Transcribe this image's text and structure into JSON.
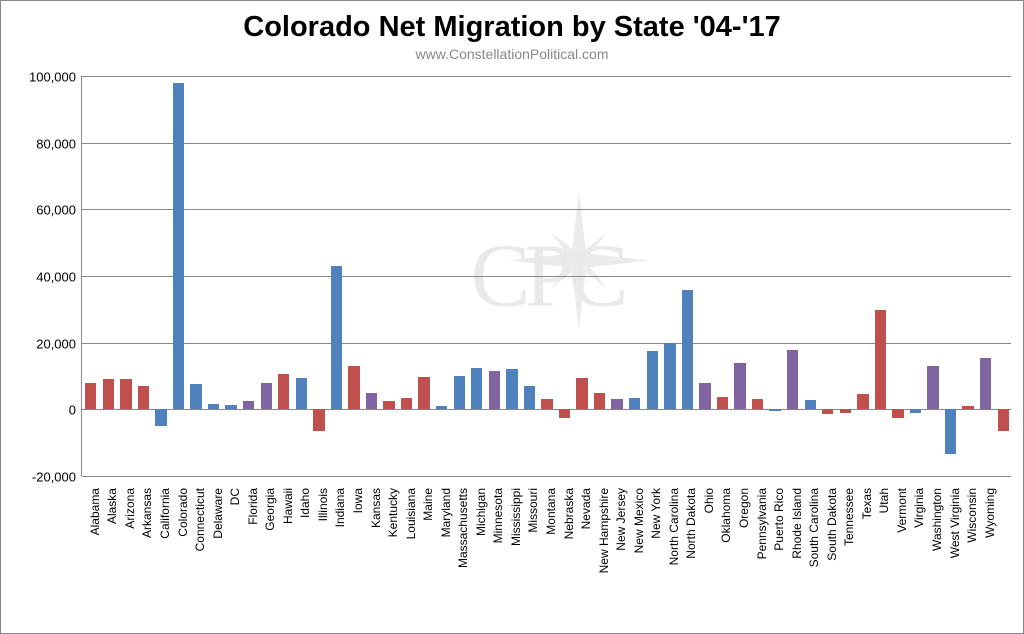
{
  "chart": {
    "type": "bar",
    "title": "Colorado Net Migration by State '04-'17",
    "title_fontsize": 29,
    "title_fontweight": "bold",
    "subtitle": "www.ConstellationPolitical.com",
    "subtitle_fontsize": 14,
    "subtitle_color": "#888888",
    "background_color": "#ffffff",
    "grid_color": "#888888",
    "ylim": [
      -20000,
      100000
    ],
    "ytick_step": 20000,
    "yticks": [
      -20000,
      0,
      20000,
      40000,
      60000,
      80000,
      100000
    ],
    "ytick_labels": [
      "-20,000",
      "0",
      "20,000",
      "40,000",
      "60,000",
      "80,000",
      "100,000"
    ],
    "ytick_fontsize": 13,
    "xlabel_fontsize": 12,
    "xlabel_rotation": -90,
    "bar_width": 0.65,
    "colors": {
      "red": "#c0504d",
      "blue": "#4f81bd",
      "purple": "#8064a2"
    },
    "watermark": {
      "text": "CPC",
      "opacity": 0.12,
      "fontsize": 90,
      "color": "#555555"
    },
    "data": [
      {
        "state": "Alabama",
        "value": 8000,
        "color": "red"
      },
      {
        "state": "Alaska",
        "value": 9000,
        "color": "red"
      },
      {
        "state": "Arizona",
        "value": 9000,
        "color": "red"
      },
      {
        "state": "Arkansas",
        "value": 7000,
        "color": "red"
      },
      {
        "state": "California",
        "value": -5000,
        "color": "blue"
      },
      {
        "state": "Colorado",
        "value": 98000,
        "color": "blue"
      },
      {
        "state": "Connecticut",
        "value": 7500,
        "color": "blue"
      },
      {
        "state": "Delaware",
        "value": 1500,
        "color": "blue"
      },
      {
        "state": "DC",
        "value": 1200,
        "color": "blue"
      },
      {
        "state": "Florida",
        "value": 2500,
        "color": "purple"
      },
      {
        "state": "Georgia",
        "value": 8000,
        "color": "purple"
      },
      {
        "state": "Hawaii",
        "value": 10500,
        "color": "red"
      },
      {
        "state": "Idaho",
        "value": 9500,
        "color": "blue"
      },
      {
        "state": "Illinois",
        "value": -6500,
        "color": "red"
      },
      {
        "state": "Indiana",
        "value": 43000,
        "color": "blue"
      },
      {
        "state": "Iowa",
        "value": 13000,
        "color": "red"
      },
      {
        "state": "Kansas",
        "value": 5000,
        "color": "purple"
      },
      {
        "state": "Kentucky",
        "value": 2500,
        "color": "red"
      },
      {
        "state": "Louisiana",
        "value": 3500,
        "color": "red"
      },
      {
        "state": "Maine",
        "value": 9800,
        "color": "red"
      },
      {
        "state": "Maryland",
        "value": 1000,
        "color": "blue"
      },
      {
        "state": "Massachusetts",
        "value": 10000,
        "color": "blue"
      },
      {
        "state": "Michigan",
        "value": 12500,
        "color": "blue"
      },
      {
        "state": "Minnesota",
        "value": 11500,
        "color": "purple"
      },
      {
        "state": "Mississippi",
        "value": 12200,
        "color": "blue"
      },
      {
        "state": "Missouri",
        "value": 7000,
        "color": "blue"
      },
      {
        "state": "Montana",
        "value": 3000,
        "color": "red"
      },
      {
        "state": "Nebraska",
        "value": -2500,
        "color": "red"
      },
      {
        "state": "Nevada",
        "value": 9500,
        "color": "red"
      },
      {
        "state": "New Hampshire",
        "value": 5000,
        "color": "red"
      },
      {
        "state": "New Jersey",
        "value": 3000,
        "color": "purple"
      },
      {
        "state": "New Mexico",
        "value": 3500,
        "color": "blue"
      },
      {
        "state": "New York",
        "value": 17500,
        "color": "blue"
      },
      {
        "state": "North Carolina",
        "value": 19800,
        "color": "blue"
      },
      {
        "state": "North Dakota",
        "value": 35800,
        "color": "blue"
      },
      {
        "state": "Ohio",
        "value": 8000,
        "color": "purple"
      },
      {
        "state": "Oklahoma",
        "value": 3800,
        "color": "red"
      },
      {
        "state": "Oregon",
        "value": 14000,
        "color": "purple"
      },
      {
        "state": "Pennsylvania",
        "value": 3000,
        "color": "red"
      },
      {
        "state": "Puerto Rico",
        "value": -500,
        "color": "blue"
      },
      {
        "state": "Rhode Island",
        "value": 17800,
        "color": "purple"
      },
      {
        "state": "South Carolina",
        "value": 2800,
        "color": "blue"
      },
      {
        "state": "South Dakota",
        "value": -1500,
        "color": "red"
      },
      {
        "state": "Tennessee",
        "value": -1200,
        "color": "red"
      },
      {
        "state": "Texas",
        "value": 4500,
        "color": "red"
      },
      {
        "state": "Utah",
        "value": 29800,
        "color": "red"
      },
      {
        "state": "Vermont",
        "value": -2500,
        "color": "red"
      },
      {
        "state": "Virginia",
        "value": -1000,
        "color": "blue"
      },
      {
        "state": "Washington",
        "value": 13000,
        "color": "purple"
      },
      {
        "state": "West Virginia",
        "value": -13500,
        "color": "blue"
      },
      {
        "state": "Wisconsin",
        "value": 1000,
        "color": "red"
      },
      {
        "state": "Wyoming",
        "value": 15300,
        "color": "purple"
      },
      {
        "state": "",
        "value": -6500,
        "color": "red"
      }
    ]
  }
}
